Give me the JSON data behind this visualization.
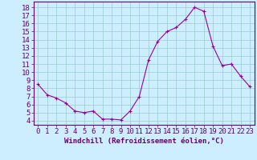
{
  "x": [
    0,
    1,
    2,
    3,
    4,
    5,
    6,
    7,
    8,
    9,
    10,
    11,
    12,
    13,
    14,
    15,
    16,
    17,
    18,
    19,
    20,
    21,
    22,
    23
  ],
  "y": [
    8.5,
    7.2,
    6.8,
    6.2,
    5.2,
    5.0,
    5.2,
    4.2,
    4.2,
    4.1,
    5.2,
    7.0,
    11.5,
    13.8,
    15.0,
    15.5,
    16.5,
    18.0,
    17.5,
    13.2,
    10.8,
    11.0,
    9.5,
    8.2
  ],
  "title": "",
  "xlabel": "Windchill (Refroidissement éolien,°C)",
  "ylabel": "",
  "xlim": [
    -0.5,
    23.5
  ],
  "ylim": [
    3.5,
    18.7
  ],
  "yticks": [
    4,
    5,
    6,
    7,
    8,
    9,
    10,
    11,
    12,
    13,
    14,
    15,
    16,
    17,
    18
  ],
  "xticks": [
    0,
    1,
    2,
    3,
    4,
    5,
    6,
    7,
    8,
    9,
    10,
    11,
    12,
    13,
    14,
    15,
    16,
    17,
    18,
    19,
    20,
    21,
    22,
    23
  ],
  "line_color": "#990099",
  "marker": "+",
  "bg_color": "#cceeff",
  "grid_color": "#99cccc",
  "axis_color": "#660066",
  "tick_label_color": "#660066",
  "xlabel_color": "#660066",
  "font_size": 6.5
}
